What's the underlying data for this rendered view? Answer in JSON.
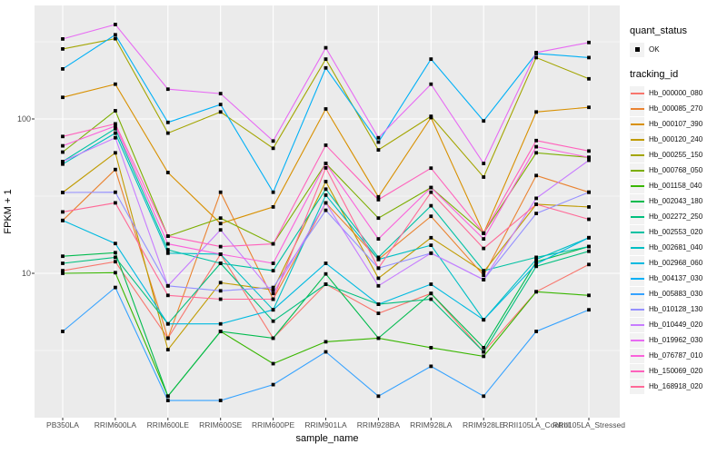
{
  "figure": {
    "background": "#FFFFFF",
    "panel_background": "#EBEBEB",
    "grid_color": "#FFFFFF",
    "tick_color": "#333333",
    "axis_text_color": "#4D4D4D",
    "point_color": "#000000"
  },
  "legend": {
    "quant_status": {
      "title": "quant_status",
      "items": [
        {
          "label": "OK",
          "marker": "black-square-point"
        }
      ]
    },
    "tracking_id": {
      "title": "tracking_id"
    }
  },
  "chart_data": {
    "type": "line",
    "title": "",
    "xlabel": "sample_name",
    "ylabel": "FPKM + 1",
    "y_scale": "log10",
    "ylim": [
      1.1,
      550
    ],
    "y_ticks": [
      {
        "label": "10",
        "value": 10
      },
      {
        "label": "100",
        "value": 100
      }
    ],
    "y_minor_gridlines": [
      3.162,
      31.62,
      316.2
    ],
    "grid": true,
    "legend_position": "right",
    "point_marker": "black-square",
    "categories": [
      "PB350LA",
      "RRIM600LA",
      "RRIM600LE",
      "RRIM600SE",
      "RRIM600PE",
      "RRIM901LA",
      "RRIM928BA",
      "RRIM928LA",
      "RRIM928LE",
      "RRII105LA_Control",
      "RRII105LA_Stressed"
    ],
    "series": [
      {
        "name": "Hb_000000_080",
        "color": "#F8766D",
        "quant_status": "OK",
        "values": [
          10.4,
          11.9,
          3.8,
          13.3,
          3.8,
          8.5,
          5.5,
          7.4,
          3.1,
          7.6,
          11.4
        ]
      },
      {
        "name": "Hb_000085_270",
        "color": "#EA8331",
        "quant_status": "OK",
        "values": [
          22,
          47,
          3.8,
          33.5,
          6.8,
          28.6,
          12.3,
          23.4,
          9.7,
          43,
          33.5
        ]
      },
      {
        "name": "Hb_000107_390",
        "color": "#D89000",
        "quant_status": "OK",
        "values": [
          138,
          168,
          45,
          21,
          26.9,
          116,
          31.3,
          102,
          18.2,
          111,
          119
        ]
      },
      {
        "name": "Hb_000120_240",
        "color": "#C09B00",
        "quant_status": "OK",
        "values": [
          33.4,
          60.3,
          3.2,
          8.7,
          7.8,
          39.3,
          9.3,
          17,
          10.2,
          28,
          26.9
        ]
      },
      {
        "name": "Hb_000255_150",
        "color": "#A3A500",
        "quant_status": "OK",
        "values": [
          284,
          331,
          81,
          111,
          64.6,
          244,
          63,
          104,
          42,
          250,
          182
        ]
      },
      {
        "name": "Hb_000768_050",
        "color": "#7CAE00",
        "quant_status": "OK",
        "values": [
          61,
          113,
          17.4,
          22.8,
          15.5,
          51.5,
          22.8,
          35.9,
          18.2,
          60.3,
          56.4
        ]
      },
      {
        "name": "Hb_001158_040",
        "color": "#39B600",
        "quant_status": "OK",
        "values": [
          10,
          10.1,
          1.6,
          4.2,
          2.6,
          3.6,
          3.8,
          3.3,
          2.9,
          7.6,
          7.2
        ]
      },
      {
        "name": "Hb_002043_180",
        "color": "#00BB4E",
        "quant_status": "OK",
        "values": [
          12.9,
          13.6,
          1.6,
          4.2,
          3.8,
          9.9,
          3.8,
          7.4,
          3.3,
          11.9,
          14.9
        ]
      },
      {
        "name": "Hb_002272_250",
        "color": "#00BF7D",
        "quant_status": "OK",
        "values": [
          11.6,
          12.7,
          4.7,
          11.6,
          4.9,
          8.5,
          6.3,
          6.8,
          3.1,
          11.1,
          13.9
        ]
      },
      {
        "name": "Hb_002553_020",
        "color": "#00C1A3",
        "quant_status": "OK",
        "values": [
          53,
          86.5,
          14.2,
          11.6,
          10.4,
          35.1,
          12.7,
          27.4,
          10.4,
          12.7,
          14.9
        ]
      },
      {
        "name": "Hb_002681_040",
        "color": "#00BFC4",
        "quant_status": "OK",
        "values": [
          51,
          81,
          13.5,
          13.3,
          5.8,
          32.1,
          12.3,
          15.2,
          5.0,
          12.3,
          17
        ]
      },
      {
        "name": "Hb_002968_060",
        "color": "#00BAE0",
        "quant_status": "OK",
        "values": [
          22,
          15.6,
          4.7,
          4.7,
          5.8,
          11.6,
          6.3,
          8.5,
          5.0,
          11.5,
          17
        ]
      },
      {
        "name": "Hb_004137_030",
        "color": "#00B0F6",
        "quant_status": "OK",
        "values": [
          211,
          351,
          95,
          124,
          33.5,
          214,
          70.8,
          244,
          97,
          265,
          250
        ]
      },
      {
        "name": "Hb_005883_030",
        "color": "#35A2FF",
        "quant_status": "OK",
        "values": [
          4.2,
          8.1,
          1.5,
          1.5,
          1.9,
          3.1,
          1.6,
          2.5,
          1.6,
          4.2,
          5.8
        ]
      },
      {
        "name": "Hb_010128_130",
        "color": "#9590FF",
        "quant_status": "OK",
        "values": [
          33.4,
          33.5,
          8.3,
          7.7,
          8.1,
          25.6,
          10.8,
          13.5,
          9.1,
          24.4,
          33.5
        ]
      },
      {
        "name": "Hb_010449_020",
        "color": "#C77CFF",
        "quant_status": "OK",
        "values": [
          53,
          75.5,
          8.3,
          19.1,
          7.4,
          28.6,
          8.3,
          13.5,
          9.1,
          30.6,
          54
        ]
      },
      {
        "name": "Hb_019962_030",
        "color": "#E76BF3",
        "quant_status": "OK",
        "values": [
          330,
          409,
          156,
          146,
          72,
          289,
          75.5,
          168,
          51.5,
          269,
          313
        ]
      },
      {
        "name": "Hb_076787_010",
        "color": "#FA62DB",
        "quant_status": "OK",
        "values": [
          67,
          90,
          15.5,
          13.3,
          11.6,
          51.5,
          16.7,
          35.9,
          16.7,
          66.1,
          56.4
        ]
      },
      {
        "name": "Hb_150069_020",
        "color": "#FF62BC",
        "quant_status": "OK",
        "values": [
          77,
          93,
          17.4,
          14.9,
          15.5,
          67.6,
          30,
          48,
          18.2,
          72.4,
          62
        ]
      },
      {
        "name": "Hb_168918_020",
        "color": "#FF6A98",
        "quant_status": "OK",
        "values": [
          25,
          28.6,
          7.2,
          6.8,
          6.8,
          48.2,
          10.8,
          33.5,
          14.5,
          28,
          22.4
        ]
      }
    ]
  }
}
